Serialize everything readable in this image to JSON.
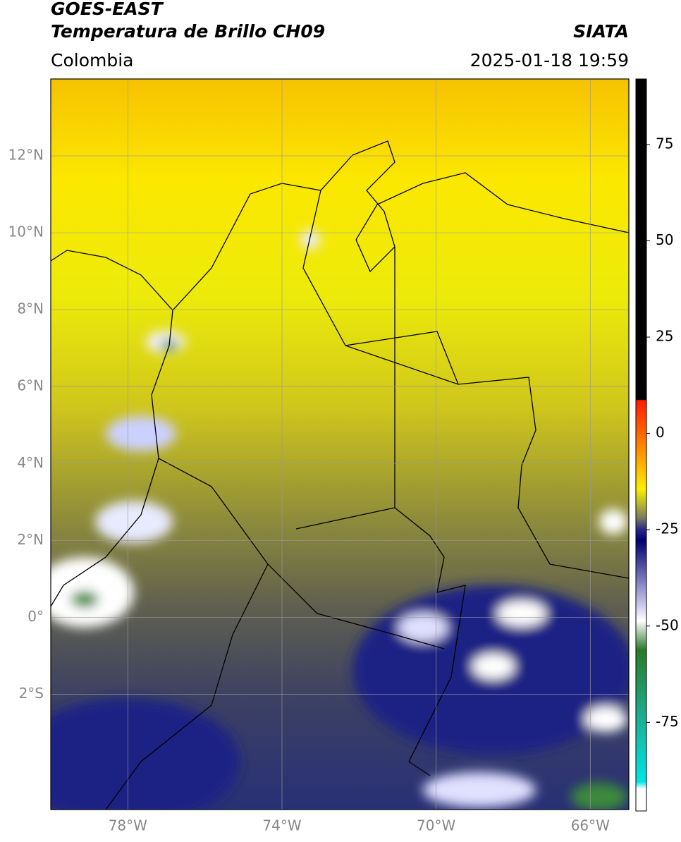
{
  "header": {
    "title": "GOES-EAST",
    "subtitle": "Temperatura de Brillo CH09",
    "source": "SIATA",
    "region": "Colombia",
    "datetime": "2025-01-18 19:59"
  },
  "map": {
    "xlim": [
      -80,
      -65
    ],
    "ylim": [
      -5,
      14
    ],
    "xticks": [
      {
        "value": -78,
        "label": "78°W"
      },
      {
        "value": -74,
        "label": "74°W"
      },
      {
        "value": -70,
        "label": "70°W"
      },
      {
        "value": -66,
        "label": "66°W"
      }
    ],
    "yticks": [
      {
        "value": 12,
        "label": "12°N"
      },
      {
        "value": 10,
        "label": "10°N"
      },
      {
        "value": 8,
        "label": "8°N"
      },
      {
        "value": 6,
        "label": "6°N"
      },
      {
        "value": 4,
        "label": "4°N"
      },
      {
        "value": 2,
        "label": "2°N"
      },
      {
        "value": 0,
        "label": "0°"
      },
      {
        "value": -2,
        "label": "2°S"
      }
    ],
    "grid": true
  },
  "colorbar": {
    "lim": [
      -98,
      92
    ],
    "ticks": [
      75,
      50,
      25,
      0,
      -25,
      -50,
      -75
    ]
  }
}
